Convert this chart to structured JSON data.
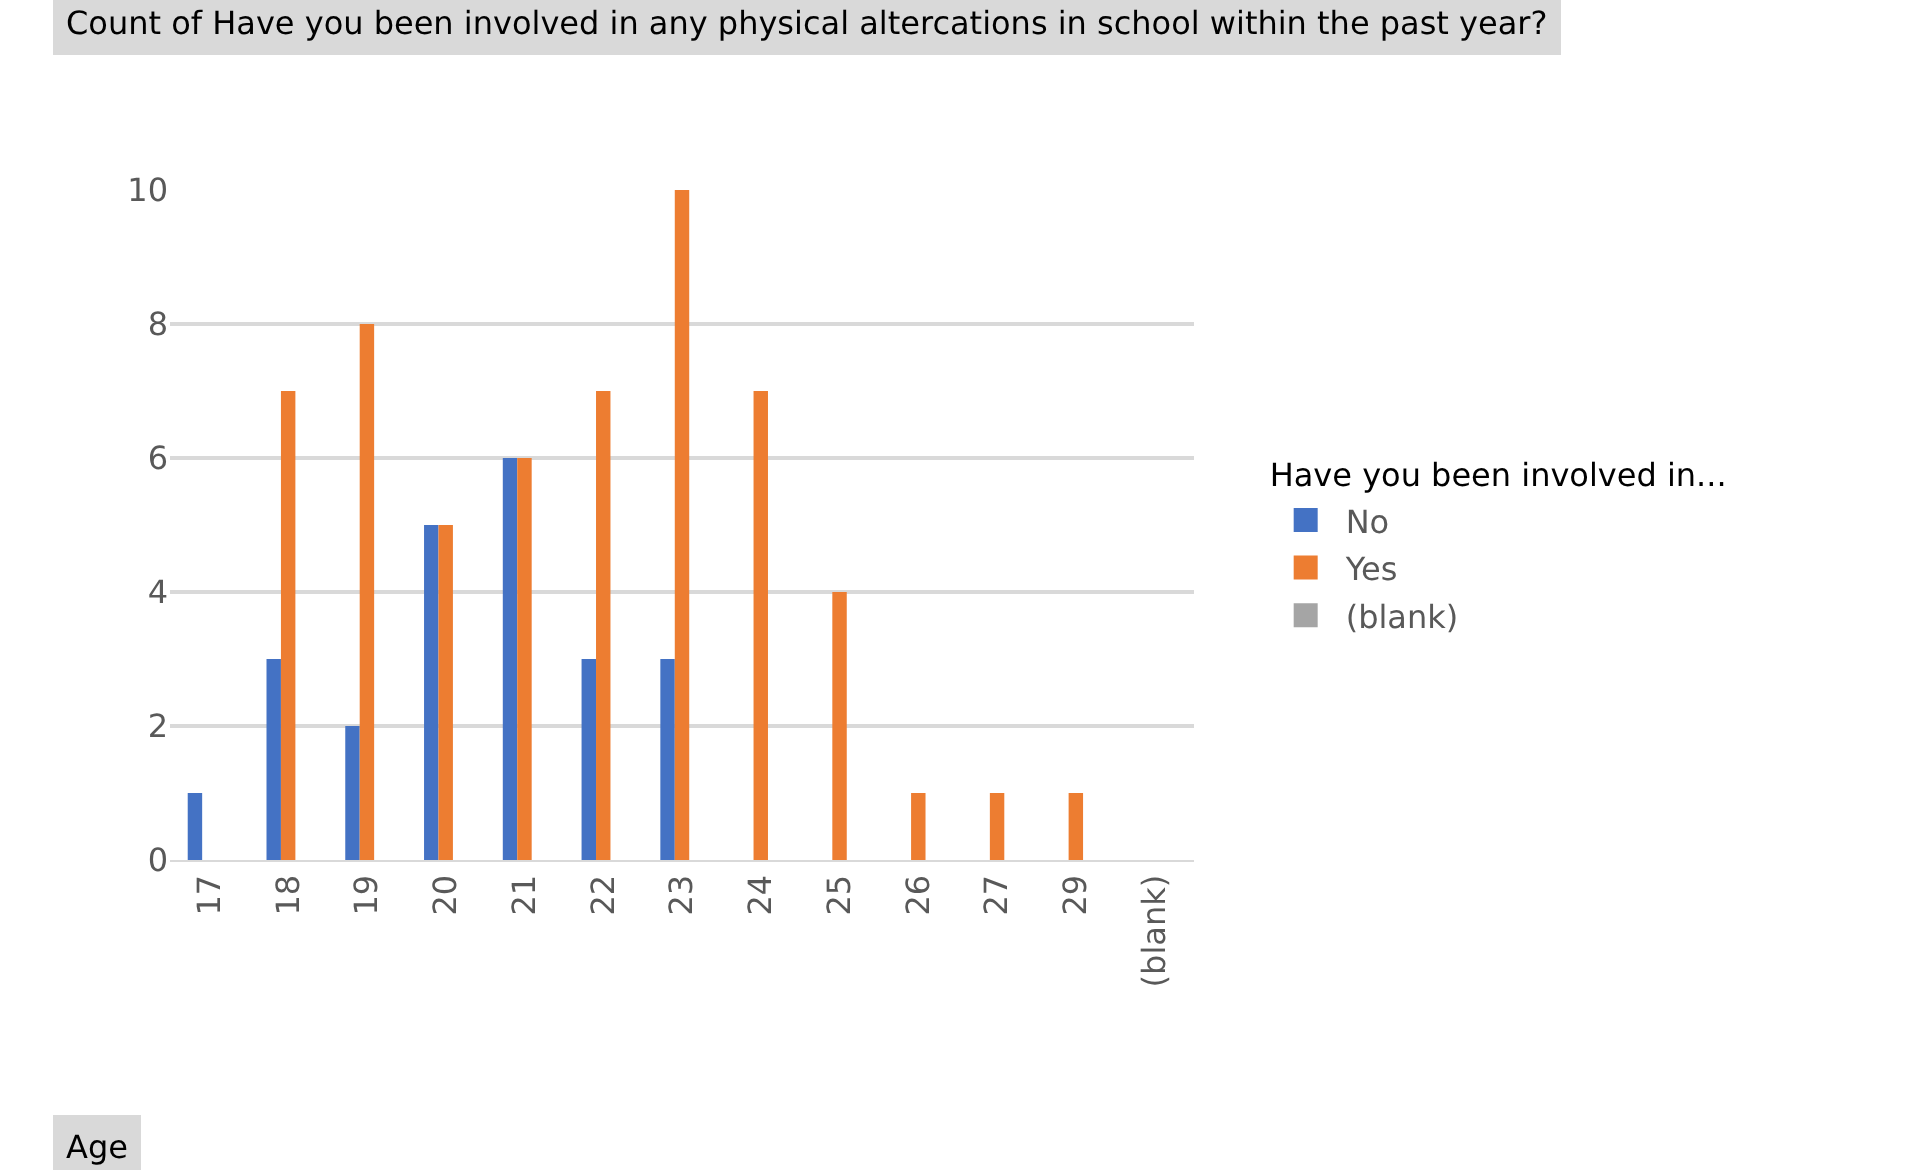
{
  "chart_data": {
    "type": "bar",
    "title": "Count of Have you been involved in any physical altercations in school within the past year?",
    "xlabel": "Age",
    "legend_title": "Have you been involved in...",
    "categories": [
      "17",
      "18",
      "19",
      "20",
      "21",
      "22",
      "23",
      "24",
      "25",
      "26",
      "27",
      "29",
      "(blank)"
    ],
    "series": [
      {
        "name": "No",
        "color": "#4472c4",
        "values": [
          1,
          3,
          2,
          5,
          6,
          3,
          3,
          null,
          null,
          null,
          null,
          null,
          null
        ]
      },
      {
        "name": "Yes",
        "color": "#ed7d31",
        "values": [
          null,
          7,
          8,
          5,
          6,
          7,
          10,
          7,
          4,
          1,
          1,
          1,
          null
        ]
      },
      {
        "name": "(blank)",
        "color": "#a5a5a5",
        "values": [
          null,
          null,
          null,
          null,
          null,
          null,
          null,
          null,
          null,
          null,
          null,
          null,
          null
        ]
      }
    ],
    "ylim": [
      0,
      10
    ],
    "yticks": [
      0,
      2,
      4,
      6,
      8,
      10
    ],
    "grid": "y",
    "legend": "right"
  }
}
